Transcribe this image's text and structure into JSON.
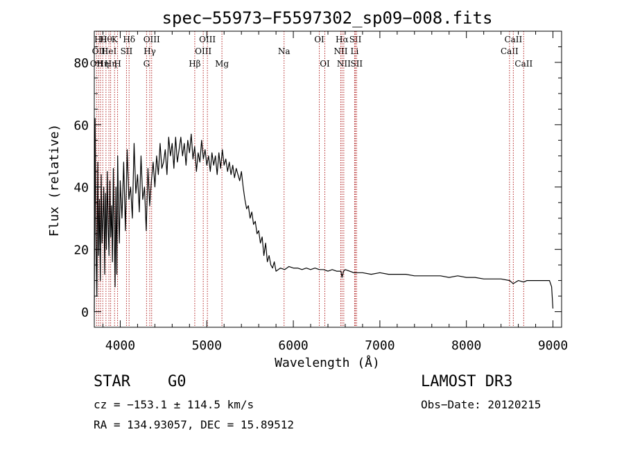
{
  "chart_data": {
    "type": "line",
    "title": "spec−55973−F5597302_sp09−008.fits",
    "xlabel": "Wavelength (Å)",
    "ylabel": "Flux (relative)",
    "xlim": [
      3700,
      9100
    ],
    "ylim": [
      -5,
      90
    ],
    "xticks": [
      4000,
      5000,
      6000,
      7000,
      8000,
      9000
    ],
    "yticks": [
      0,
      20,
      40,
      60,
      80
    ],
    "grid": false,
    "series": [
      {
        "name": "flux",
        "x": [
          3700,
          3710,
          3720,
          3730,
          3740,
          3750,
          3760,
          3770,
          3780,
          3790,
          3800,
          3810,
          3820,
          3830,
          3840,
          3850,
          3860,
          3870,
          3880,
          3890,
          3900,
          3910,
          3920,
          3930,
          3940,
          3950,
          3960,
          3970,
          3980,
          3990,
          4000,
          4020,
          4040,
          4060,
          4080,
          4100,
          4120,
          4140,
          4160,
          4180,
          4200,
          4220,
          4240,
          4260,
          4280,
          4300,
          4320,
          4340,
          4360,
          4380,
          4400,
          4420,
          4440,
          4460,
          4480,
          4500,
          4520,
          4540,
          4560,
          4580,
          4600,
          4620,
          4640,
          4660,
          4680,
          4700,
          4720,
          4740,
          4760,
          4780,
          4800,
          4820,
          4840,
          4860,
          4880,
          4900,
          4920,
          4940,
          4960,
          4980,
          5000,
          5020,
          5040,
          5060,
          5080,
          5100,
          5120,
          5140,
          5160,
          5180,
          5200,
          5220,
          5240,
          5260,
          5280,
          5300,
          5320,
          5340,
          5360,
          5380,
          5400,
          5420,
          5440,
          5460,
          5480,
          5500,
          5520,
          5540,
          5560,
          5580,
          5600,
          5620,
          5640,
          5660,
          5680,
          5700,
          5720,
          5740,
          5760,
          5780,
          5800,
          5850,
          5900,
          5950,
          6000,
          6050,
          6100,
          6150,
          6200,
          6250,
          6300,
          6350,
          6400,
          6450,
          6500,
          6550,
          6563,
          6580,
          6600,
          6650,
          6700,
          6750,
          6800,
          6900,
          7000,
          7100,
          7200,
          7300,
          7400,
          7500,
          7600,
          7700,
          7800,
          7900,
          8000,
          8100,
          8200,
          8300,
          8400,
          8500,
          8540,
          8600,
          8662,
          8700,
          8800,
          8900,
          8960,
          8985,
          9000
        ],
        "y": [
          0,
          62,
          20,
          5,
          48,
          18,
          36,
          10,
          44,
          22,
          30,
          40,
          12,
          38,
          20,
          45,
          28,
          18,
          42,
          24,
          34,
          16,
          46,
          28,
          8,
          40,
          12,
          50,
          32,
          22,
          42,
          30,
          48,
          26,
          52,
          36,
          40,
          30,
          54,
          38,
          44,
          32,
          50,
          36,
          40,
          26,
          46,
          34,
          42,
          48,
          40,
          50,
          44,
          54,
          46,
          48,
          52,
          44,
          56,
          50,
          54,
          46,
          56,
          48,
          52,
          56,
          50,
          54,
          47,
          55,
          51,
          57,
          49,
          53,
          45,
          51,
          48,
          55,
          49,
          52,
          47,
          50,
          45,
          51,
          47,
          50,
          44,
          51,
          46,
          52,
          47,
          49,
          45,
          48,
          44,
          47,
          43,
          46,
          44,
          42,
          45,
          40,
          36,
          33,
          34,
          30,
          32,
          28,
          29,
          25,
          26,
          22,
          24,
          18,
          22,
          16,
          18,
          15,
          14,
          16,
          13,
          14,
          13.5,
          14.5,
          14,
          14,
          13.5,
          14,
          13.5,
          14,
          13.5,
          13.5,
          13,
          13.5,
          13,
          13,
          11,
          13,
          13.5,
          13,
          12.5,
          12.5,
          12.5,
          12,
          12.5,
          12,
          12,
          12,
          11.5,
          11.5,
          11.5,
          11.5,
          11,
          11.5,
          11,
          11,
          10.5,
          10.5,
          10.5,
          10,
          9,
          10,
          9.5,
          10,
          10,
          10,
          10,
          8,
          1
        ]
      }
    ],
    "lines": [
      {
        "wave": 3727,
        "label": "OII",
        "row": 3
      },
      {
        "wave": 3750,
        "label": "OII",
        "row": 2
      },
      {
        "wave": 3771,
        "label": "Hθ",
        "row": 1
      },
      {
        "wave": 3798,
        "label": "Hη",
        "row": 3
      },
      {
        "wave": 3835,
        "label": "Hθ",
        "row": 1
      },
      {
        "wave": 3869,
        "label": "HeI",
        "row": 2
      },
      {
        "wave": 3889,
        "label": "Hη",
        "row": 3
      },
      {
        "wave": 3934,
        "label": "K",
        "row": 1
      },
      {
        "wave": 3969,
        "label": "H",
        "row": 3
      },
      {
        "wave": 4072,
        "label": "SII",
        "row": 2
      },
      {
        "wave": 4102,
        "label": "Hδ",
        "row": 1
      },
      {
        "wave": 4304,
        "label": "G",
        "row": 3
      },
      {
        "wave": 4341,
        "label": "Hγ",
        "row": 2
      },
      {
        "wave": 4363,
        "label": "OIII",
        "row": 1
      },
      {
        "wave": 4861,
        "label": "Hβ",
        "row": 3
      },
      {
        "wave": 4959,
        "label": "OIII",
        "row": 2
      },
      {
        "wave": 5007,
        "label": "OIII",
        "row": 1
      },
      {
        "wave": 5175,
        "label": "Mg",
        "row": 3
      },
      {
        "wave": 5893,
        "label": "Na",
        "row": 2
      },
      {
        "wave": 6300,
        "label": "OI",
        "row": 1
      },
      {
        "wave": 6364,
        "label": "OI",
        "row": 3
      },
      {
        "wave": 6548,
        "label": "NII",
        "row": 2
      },
      {
        "wave": 6563,
        "label": "Hα",
        "row": 1
      },
      {
        "wave": 6583,
        "label": "NII",
        "row": 3
      },
      {
        "wave": 6708,
        "label": "Li",
        "row": 2
      },
      {
        "wave": 6717,
        "label": "SII",
        "row": 1
      },
      {
        "wave": 6731,
        "label": "SII",
        "row": 3
      },
      {
        "wave": 8498,
        "label": "CaII",
        "row": 2
      },
      {
        "wave": 8542,
        "label": "CaII",
        "row": 1
      },
      {
        "wave": 8662,
        "label": "CaII",
        "row": 3
      }
    ],
    "line_color": "#b22222"
  },
  "info": {
    "class": "STAR",
    "subclass": "G0",
    "survey": "LAMOST DR3",
    "cz": "cz = −153.1 ± 114.5 km/s",
    "obs_date": "Obs−Date: 20120215",
    "coords": "RA = 134.93057, DEC =  15.89512"
  }
}
